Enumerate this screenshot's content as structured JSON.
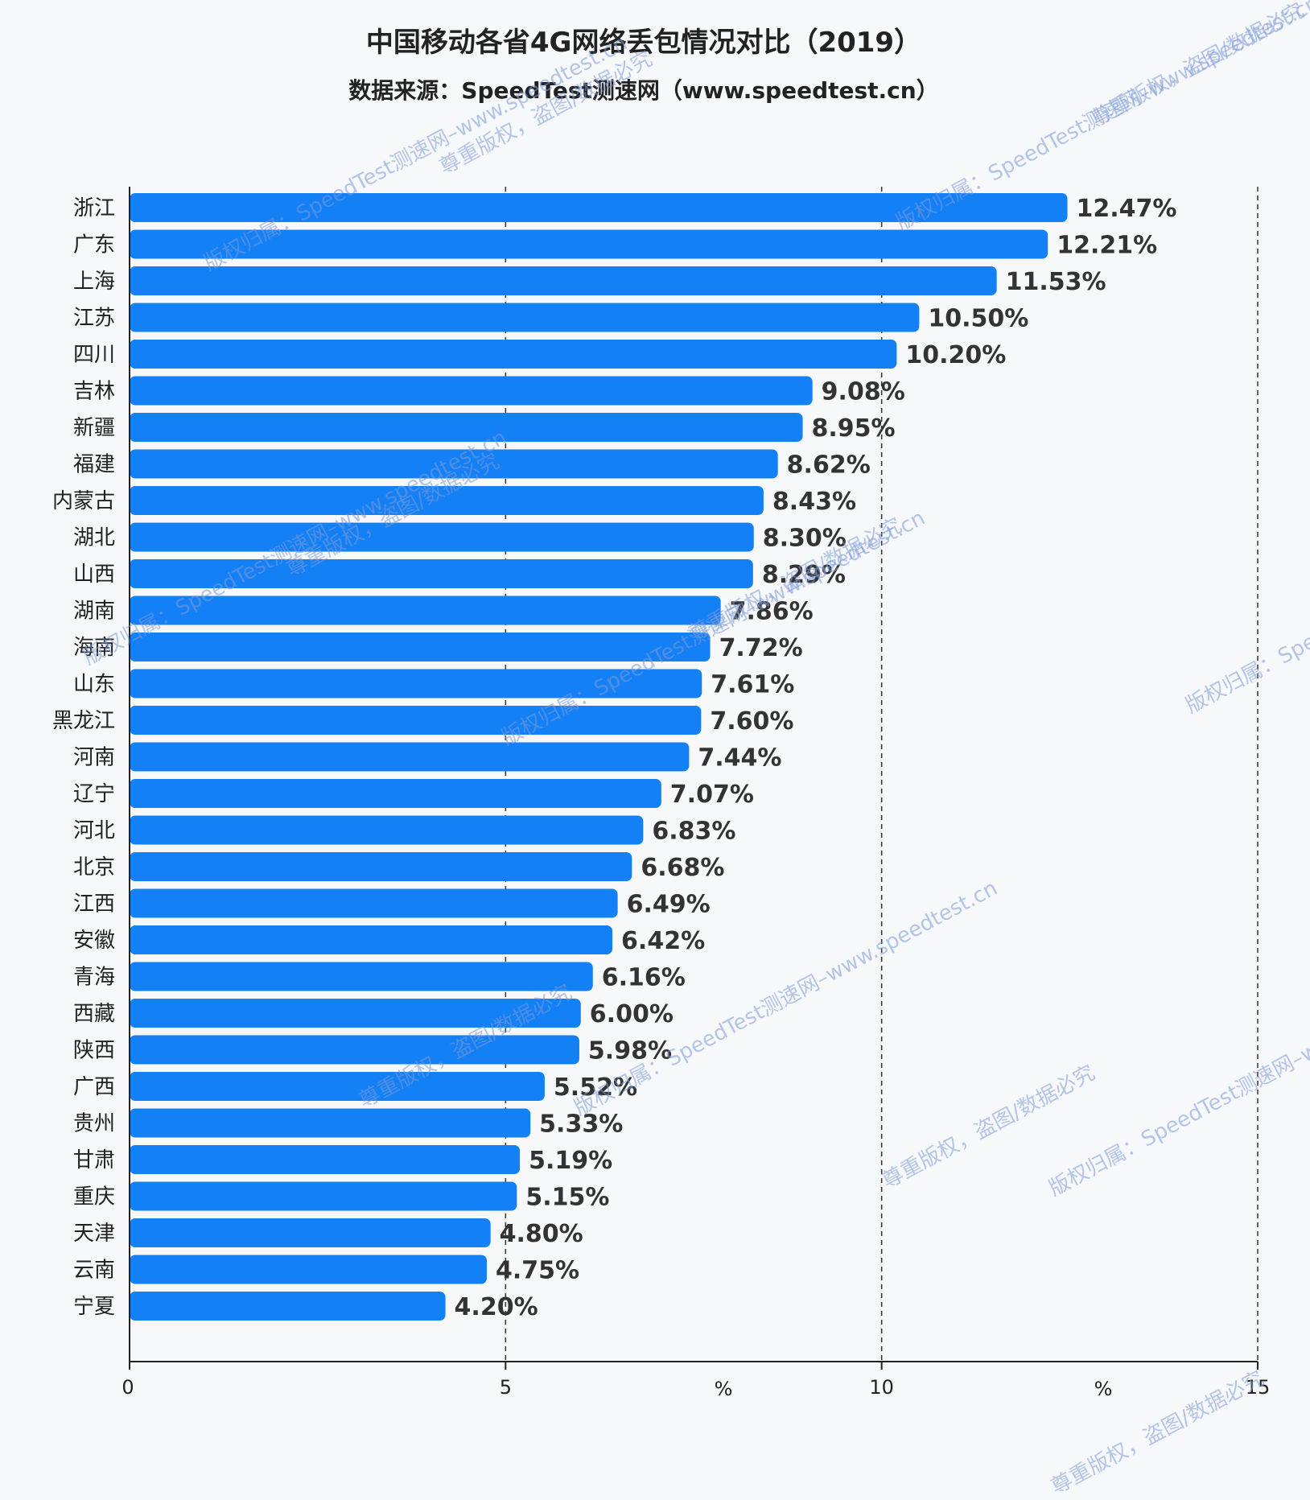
{
  "chart_data": {
    "type": "bar",
    "orientation": "horizontal",
    "title": "中国移动各省4G网络丢包情况对比（2019）",
    "subtitle": "数据来源：SpeedTest测速网（www.speedtest.cn）",
    "categories": [
      "浙江",
      "广东",
      "上海",
      "江苏",
      "四川",
      "吉林",
      "新疆",
      "福建",
      "内蒙古",
      "湖北",
      "山西",
      "湖南",
      "海南",
      "山东",
      "黑龙江",
      "河南",
      "辽宁",
      "河北",
      "北京",
      "江西",
      "安徽",
      "青海",
      "西藏",
      "陕西",
      "广西",
      "贵州",
      "甘肃",
      "重庆",
      "天津",
      "云南",
      "宁夏"
    ],
    "values": [
      12.47,
      12.21,
      11.53,
      10.5,
      10.2,
      9.08,
      8.95,
      8.62,
      8.43,
      8.3,
      8.29,
      7.86,
      7.72,
      7.61,
      7.6,
      7.44,
      7.07,
      6.83,
      6.68,
      6.49,
      6.42,
      6.16,
      6.0,
      5.98,
      5.52,
      5.33,
      5.19,
      5.15,
      4.8,
      4.75,
      4.2
    ],
    "value_labels": [
      "12.47%",
      "12.21%",
      "11.53%",
      "10.50%",
      "10.20%",
      "9.08%",
      "8.95%",
      "8.62%",
      "8.43%",
      "8.30%",
      "8.29%",
      "7.86%",
      "7.72%",
      "7.61%",
      "7.60%",
      "7.44%",
      "7.07%",
      "6.83%",
      "6.68%",
      "6.49%",
      "6.42%",
      "6.16%",
      "6.00%",
      "5.98%",
      "5.52%",
      "5.33%",
      "5.19%",
      "5.15%",
      "4.80%",
      "4.75%",
      "4.20%"
    ],
    "xlim": [
      0,
      15
    ],
    "xticks": [
      "0",
      "5",
      "10",
      "15"
    ],
    "unit_labels": [
      "%",
      "%"
    ],
    "grid": "vertical dashed at 5, 10, 15",
    "bar_color": "#1380f6"
  },
  "watermarks": [
    "版权归属：SpeedTest测速网–www.speedtest.cn",
    "尊重版权，盗图/数据必究"
  ]
}
